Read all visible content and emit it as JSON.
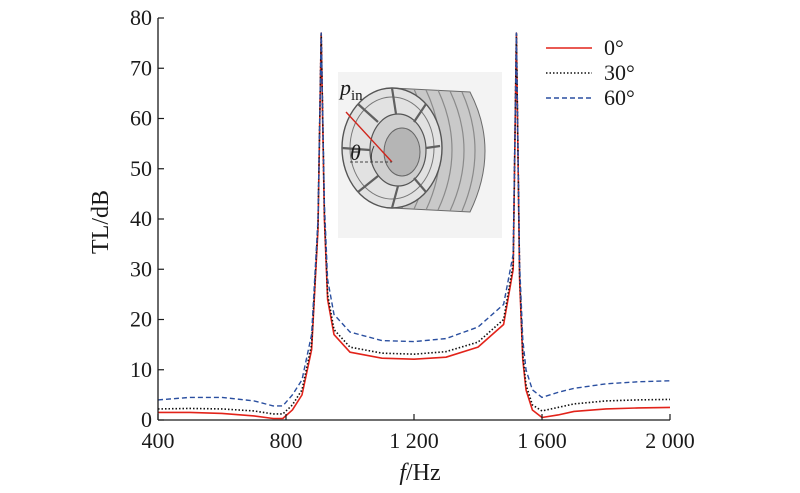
{
  "chart_data": {
    "type": "line",
    "title": "",
    "xlabel_italic": "f",
    "xlabel_rest": "/Hz",
    "ylabel": "TL/dB",
    "xlim": [
      400,
      2000
    ],
    "ylim": [
      0,
      80
    ],
    "x_ticks": [
      400,
      800,
      1200,
      1600,
      2000
    ],
    "x_tick_labels": [
      "400",
      "800",
      "1 200",
      "1 600",
      "2 000"
    ],
    "y_ticks": [
      0,
      10,
      20,
      30,
      40,
      50,
      60,
      70,
      80
    ],
    "y_tick_labels": [
      "0",
      "10",
      "20",
      "30",
      "40",
      "50",
      "60",
      "70",
      "80"
    ],
    "grid": false,
    "legend_position": "top-right",
    "series": [
      {
        "name": "0°",
        "color": "#e2231a",
        "dash": "solid",
        "x": [
          400,
          500,
          600,
          700,
          760,
          790,
          820,
          850,
          880,
          900,
          910,
          920,
          930,
          950,
          1000,
          1100,
          1200,
          1300,
          1400,
          1480,
          1510,
          1520,
          1530,
          1540,
          1550,
          1570,
          1600,
          1650,
          1700,
          1800,
          1900,
          2000
        ],
        "y": [
          1.5,
          1.5,
          1.3,
          0.8,
          0.3,
          0.3,
          2,
          5,
          14,
          38,
          77,
          40,
          24,
          17,
          13.5,
          12.3,
          12.1,
          12.5,
          14.5,
          19,
          30,
          77,
          28,
          12,
          6,
          2,
          0.5,
          1,
          1.7,
          2.2,
          2.4,
          2.5
        ]
      },
      {
        "name": "30°",
        "color": "#111111",
        "dash": "dotted",
        "x": [
          400,
          500,
          600,
          700,
          760,
          790,
          820,
          850,
          880,
          900,
          910,
          920,
          930,
          950,
          1000,
          1100,
          1200,
          1300,
          1400,
          1480,
          1510,
          1520,
          1530,
          1540,
          1550,
          1570,
          1600,
          1650,
          1700,
          1800,
          1900,
          2000
        ],
        "y": [
          2.2,
          2.3,
          2.2,
          1.8,
          1.2,
          1.2,
          3,
          6,
          15,
          39,
          77,
          41,
          25,
          18,
          14.5,
          13.3,
          13.1,
          13.6,
          15.5,
          20,
          31,
          77,
          29,
          13,
          7,
          3,
          1.8,
          2.5,
          3.2,
          3.8,
          4,
          4.1
        ]
      },
      {
        "name": "60°",
        "color": "#2a4fa0",
        "dash": "dashed",
        "x": [
          400,
          500,
          600,
          700,
          760,
          790,
          820,
          850,
          880,
          900,
          910,
          920,
          930,
          950,
          1000,
          1100,
          1200,
          1300,
          1400,
          1480,
          1510,
          1520,
          1530,
          1540,
          1550,
          1570,
          1600,
          1650,
          1700,
          1800,
          1900,
          2000
        ],
        "y": [
          4,
          4.5,
          4.5,
          3.8,
          2.8,
          2.8,
          5,
          8,
          17,
          40,
          77,
          43,
          28,
          21,
          17.5,
          15.8,
          15.6,
          16.2,
          18.5,
          23,
          33,
          77,
          31,
          16,
          10,
          6,
          4.5,
          5.5,
          6.3,
          7.2,
          7.6,
          7.8
        ]
      }
    ]
  },
  "inset": {
    "pressure_symbol": "p",
    "pressure_subscript": "in",
    "angle_symbol": "θ"
  }
}
